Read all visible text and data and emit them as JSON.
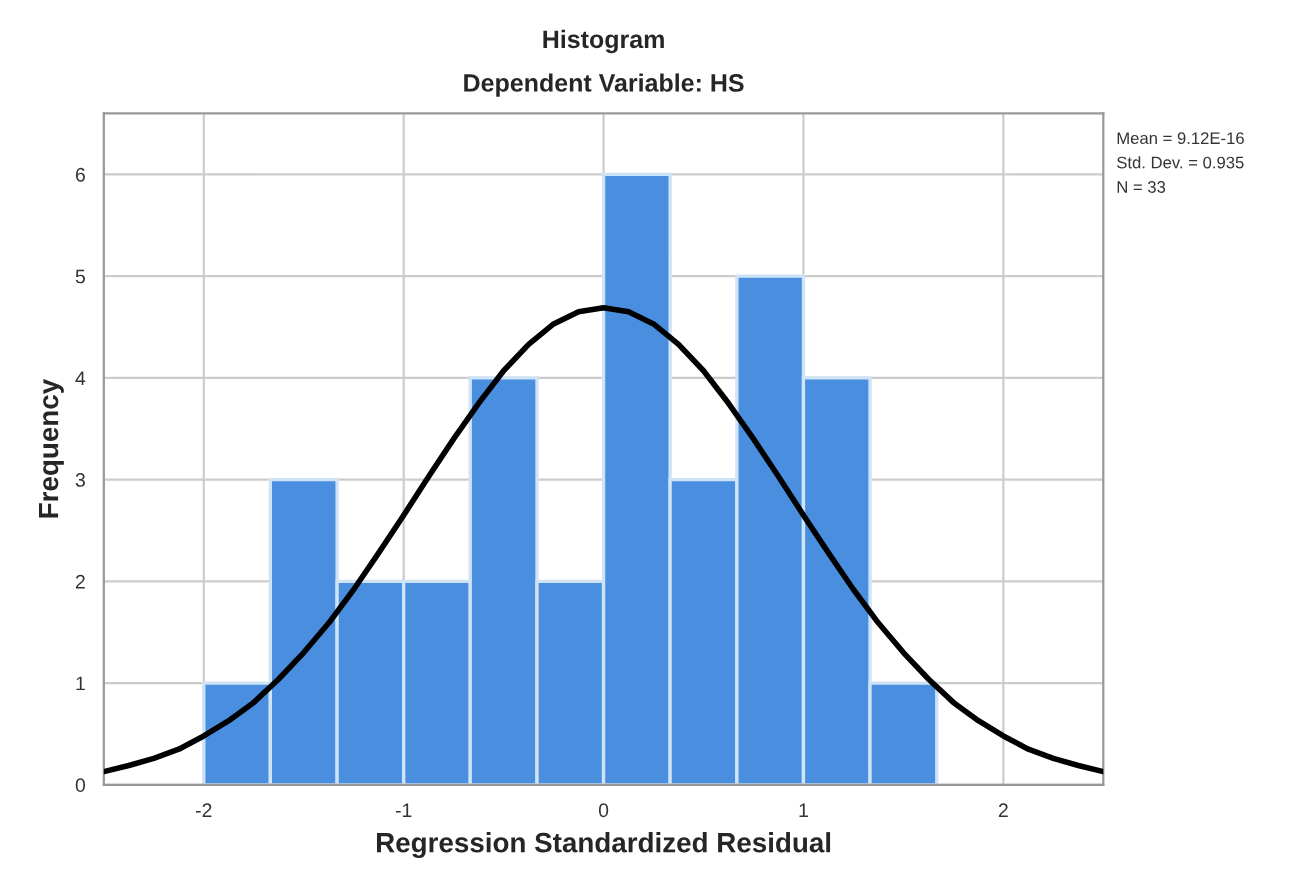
{
  "chart_data": {
    "type": "histogram",
    "title": "Histogram",
    "subtitle": "Dependent Variable: HS",
    "xlabel": "Regression Standardized Residual",
    "ylabel": "Frequency",
    "bins": [
      -2,
      -1.667,
      -1.333,
      -1,
      -0.667,
      -0.333,
      0,
      0.333,
      0.667,
      1,
      1.333,
      1.667
    ],
    "values": [
      1,
      3,
      2,
      2,
      4,
      2,
      6,
      3,
      5,
      4,
      1
    ],
    "color": "#4a8ee0",
    "series": [
      {
        "type": "line",
        "color": "#000000",
        "x": [
          -2.5,
          -2.375,
          -2.25,
          -2.125,
          -2,
          -1.875,
          -1.75,
          -1.625,
          -1.5,
          -1.375,
          -1.25,
          -1.125,
          -1,
          -0.875,
          -0.75,
          -0.625,
          -0.5,
          -0.375,
          -0.25,
          -0.125,
          0,
          0.125,
          0.25,
          0.375,
          0.5,
          0.625,
          0.75,
          0.875,
          1,
          1.125,
          1.25,
          1.375,
          1.5,
          1.625,
          1.75,
          1.875,
          2,
          2.125,
          2.25,
          2.375,
          2.5
        ],
        "values": [
          0.13,
          0.19,
          0.26,
          0.35,
          0.48,
          0.63,
          0.81,
          1.04,
          1.3,
          1.59,
          1.92,
          2.28,
          2.65,
          3.03,
          3.4,
          3.75,
          4.07,
          4.33,
          4.53,
          4.65,
          4.69,
          4.65,
          4.53,
          4.33,
          4.07,
          3.75,
          3.4,
          3.03,
          2.65,
          2.28,
          1.92,
          1.59,
          1.3,
          1.04,
          0.81,
          0.63,
          0.48,
          0.35,
          0.26,
          0.19,
          0.13
        ]
      }
    ],
    "xlim": [
      -2.5,
      2.5
    ],
    "xticks": [
      -2,
      -1,
      0,
      1,
      2
    ],
    "ylim": [
      0,
      6.6
    ],
    "yticks": [
      0,
      1,
      2,
      3,
      4,
      5,
      6
    ],
    "grid": true,
    "annotations": [
      "Mean = 9.12E-16",
      "Std. Dev. = 0.935",
      "N = 33"
    ]
  }
}
